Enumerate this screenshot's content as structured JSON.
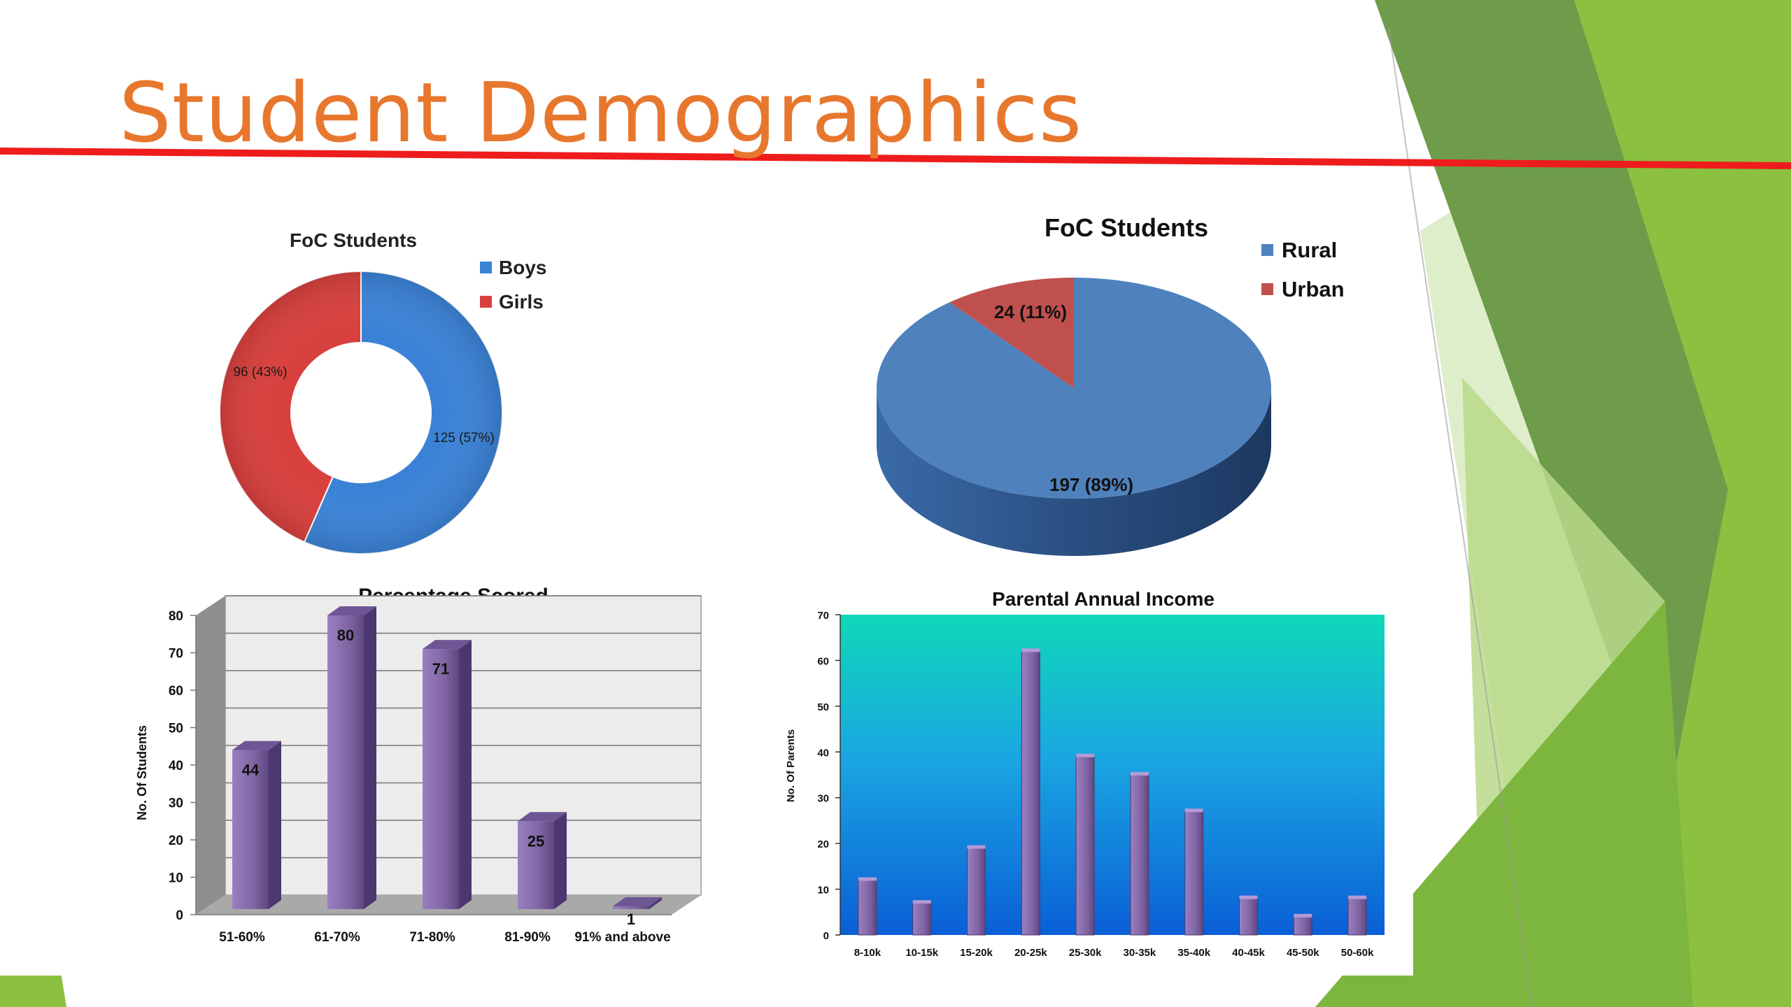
{
  "slide": {
    "title": "Student Demographics",
    "colors": {
      "title": "#e8772e",
      "rule": "#ee1c1c",
      "green_dark": "#6e9c4a",
      "green_mid": "#8cc040",
      "green_light": "#b9d98a",
      "green_pale": "#dbecc4"
    }
  },
  "chart_data": [
    {
      "type": "pie",
      "variant": "donut",
      "title": "FoC Students",
      "legend": [
        "Boys",
        "Girls"
      ],
      "legend_placement": "right",
      "slices": [
        {
          "label": "Boys",
          "value": 125,
          "percent": 57,
          "data_label": "125 (57%)",
          "color": "#3b82d6"
        },
        {
          "label": "Girls",
          "value": 96,
          "percent": 43,
          "data_label": "96 (43%)",
          "color": "#d8403d"
        }
      ]
    },
    {
      "type": "pie",
      "variant": "3d",
      "title": "FoC Students",
      "legend": [
        "Rural",
        "Urban"
      ],
      "legend_placement": "top-right",
      "slices": [
        {
          "label": "Rural",
          "value": 197,
          "percent": 89,
          "data_label": "197 (89%)",
          "color": "#4f81bd"
        },
        {
          "label": "Urban",
          "value": 24,
          "percent": 11,
          "data_label": "24 (11%)",
          "color": "#c0504d"
        }
      ]
    },
    {
      "type": "bar",
      "variant": "3d",
      "title": "Percentage Scored",
      "ylabel": "No. Of Students",
      "xlabel": "",
      "categories": [
        "51-60%",
        "61-70%",
        "71-80%",
        "81-90%",
        "91% and above"
      ],
      "values": [
        44,
        80,
        71,
        25,
        1
      ],
      "ylim": [
        0,
        80
      ],
      "yticks": [
        0,
        10,
        20,
        30,
        40,
        50,
        60,
        70,
        80
      ],
      "grid": true,
      "bar_color": "#8064a2"
    },
    {
      "type": "bar",
      "title": "Parental Annual Income",
      "ylabel": "No. Of Parents",
      "xlabel": "",
      "categories": [
        "8-10k",
        "10-15k",
        "15-20k",
        "20-25k",
        "25-30k",
        "30-35k",
        "35-40k",
        "40-45k",
        "45-50k",
        "50-60k"
      ],
      "values": [
        12,
        7,
        19,
        62,
        39,
        35,
        27,
        8,
        4,
        8
      ],
      "ylim": [
        0,
        70
      ],
      "yticks": [
        0,
        10,
        20,
        30,
        40,
        50,
        60,
        70
      ],
      "grid": false,
      "bar_color": "#8064a2",
      "background": [
        "#0fd8b8",
        "#1a9fe0",
        "#0a66d8"
      ]
    }
  ]
}
